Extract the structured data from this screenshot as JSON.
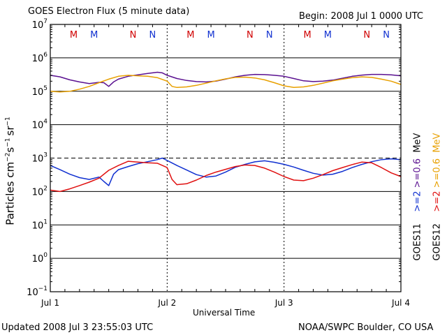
{
  "header": {
    "title": "GOES Electron Flux (5 minute data)",
    "begin": "Begin: 2008 Jul 1 0000 UTC"
  },
  "footer": {
    "updated": "Updated 2008 Jul  3 23:55:03 UTC",
    "source": "NOAA/SWPC Boulder, CO USA"
  },
  "colors": {
    "goes11_ge2": "#1030d0",
    "goes11_ge06": "#5a1090",
    "goes12_ge2": "#e01010",
    "goes12_ge06": "#e8a000",
    "marker_M": "#d00000",
    "marker_N_red": "#d00000",
    "marker_N_blue": "#1030d0",
    "frame": "#000000"
  },
  "chart_data": {
    "type": "line",
    "title": "GOES Electron Flux (5 minute data)",
    "xlabel": "Universal Time",
    "ylabel": "Particles cm⁻² s⁻¹ sr⁻¹",
    "ylabel_parts": {
      "base": "Particles cm",
      "e1": "−2",
      "s": "s",
      "e2": "−1",
      "sr": "sr",
      "e3": "−1"
    },
    "yscale": "log",
    "ylim": [
      0.1,
      10000000
    ],
    "xlim": [
      0,
      72
    ],
    "x_unit": "hours since 2008 Jul 1 0000 UTC",
    "x_ticks": [
      {
        "x": 0,
        "label": "Jul 1"
      },
      {
        "x": 24,
        "label": "Jul 2"
      },
      {
        "x": 48,
        "label": "Jul 3"
      },
      {
        "x": 72,
        "label": "Jul 4"
      }
    ],
    "y_ticks": [
      {
        "base": "10",
        "exp": "7"
      },
      {
        "base": "10",
        "exp": "6"
      },
      {
        "base": "10",
        "exp": "5"
      },
      {
        "base": "10",
        "exp": "4"
      },
      {
        "base": "10",
        "exp": "3"
      },
      {
        "base": "10",
        "exp": "2"
      },
      {
        "base": "10",
        "exp": "1"
      },
      {
        "base": "10",
        "exp": "0"
      },
      {
        "base": "10",
        "exp": "−1"
      }
    ],
    "threshold": {
      "value": 1000,
      "style": "dashed"
    },
    "legend": {
      "goes11": {
        "label": "GOES11",
        "ge2": ">=2",
        "ge06": ">=0.6",
        "unit": "MeV"
      },
      "goes12": {
        "label": "GOES12",
        "ge2": ">=2",
        "ge06": ">=0.6",
        "unit": "MeV"
      }
    },
    "markers": [
      {
        "label": "M",
        "x": 4.8,
        "color": "red"
      },
      {
        "label": "M",
        "x": 9.0,
        "color": "blue"
      },
      {
        "label": "N",
        "x": 17.0,
        "color": "red"
      },
      {
        "label": "N",
        "x": 21.0,
        "color": "blue"
      },
      {
        "label": "M",
        "x": 28.8,
        "color": "red"
      },
      {
        "label": "M",
        "x": 33.0,
        "color": "blue"
      },
      {
        "label": "N",
        "x": 41.0,
        "color": "red"
      },
      {
        "label": "N",
        "x": 45.0,
        "color": "blue"
      },
      {
        "label": "M",
        "x": 52.8,
        "color": "red"
      },
      {
        "label": "M",
        "x": 57.0,
        "color": "blue"
      },
      {
        "label": "N",
        "x": 65.0,
        "color": "red"
      },
      {
        "label": "N",
        "x": 69.0,
        "color": "blue"
      }
    ],
    "series": [
      {
        "name": "GOES11 >=0.6 MeV",
        "color": "#5a1090",
        "x": [
          0,
          2,
          4,
          6,
          8,
          10,
          11,
          12,
          13,
          14,
          16,
          18,
          20,
          22,
          23,
          24,
          26,
          28,
          30,
          32,
          34,
          36,
          38,
          40,
          42,
          44,
          46,
          48,
          50,
          52,
          54,
          56,
          58,
          60,
          62,
          64,
          66,
          68,
          70,
          72
        ],
        "y": [
          300000,
          270000,
          220000,
          190000,
          170000,
          185000,
          180000,
          140000,
          190000,
          230000,
          280000,
          310000,
          340000,
          370000,
          355000,
          300000,
          240000,
          210000,
          195000,
          190000,
          200000,
          230000,
          270000,
          300000,
          320000,
          315000,
          300000,
          280000,
          240000,
          205000,
          195000,
          200000,
          215000,
          245000,
          280000,
          305000,
          320000,
          320000,
          310000,
          290000
        ]
      },
      {
        "name": "GOES12 >=0.6 MeV",
        "color": "#e8a000",
        "x": [
          0,
          2,
          4,
          6,
          8,
          10,
          12,
          14,
          16,
          18,
          20,
          22,
          24,
          25,
          26,
          28,
          30,
          32,
          34,
          36,
          38,
          40,
          42,
          44,
          46,
          48,
          50,
          52,
          54,
          56,
          58,
          60,
          62,
          64,
          66,
          68,
          70,
          72
        ],
        "y": [
          100000,
          95000,
          100000,
          115000,
          140000,
          180000,
          230000,
          280000,
          300000,
          290000,
          280000,
          255000,
          200000,
          140000,
          130000,
          135000,
          150000,
          175000,
          205000,
          235000,
          260000,
          265000,
          250000,
          220000,
          180000,
          145000,
          130000,
          135000,
          150000,
          175000,
          205000,
          230000,
          255000,
          270000,
          260000,
          230000,
          200000,
          160000
        ]
      },
      {
        "name": "GOES11 >=2 MeV",
        "color": "#1030d0",
        "x": [
          0,
          2,
          4,
          6,
          8,
          10,
          11,
          12,
          13,
          14,
          16,
          18,
          20,
          22,
          23,
          24,
          26,
          28,
          30,
          32,
          34,
          36,
          38,
          40,
          42,
          44,
          46,
          48,
          50,
          52,
          54,
          56,
          58,
          60,
          62,
          64,
          66,
          68,
          70,
          72
        ],
        "y": [
          600,
          450,
          330,
          260,
          230,
          270,
          200,
          150,
          330,
          450,
          560,
          680,
          780,
          900,
          1000,
          850,
          600,
          440,
          320,
          270,
          290,
          380,
          530,
          650,
          770,
          830,
          750,
          650,
          540,
          430,
          350,
          310,
          330,
          400,
          520,
          650,
          780,
          900,
          950,
          900
        ]
      },
      {
        "name": "GOES12 >=2 MeV",
        "color": "#e01010",
        "x": [
          0,
          2,
          4,
          6,
          8,
          10,
          12,
          14,
          16,
          18,
          20,
          22,
          24,
          25,
          26,
          28,
          30,
          32,
          34,
          36,
          38,
          40,
          42,
          44,
          46,
          48,
          50,
          52,
          54,
          56,
          58,
          60,
          62,
          64,
          66,
          68,
          70,
          72
        ],
        "y": [
          110,
          100,
          120,
          150,
          190,
          250,
          430,
          600,
          800,
          760,
          720,
          700,
          520,
          230,
          160,
          170,
          220,
          300,
          380,
          460,
          560,
          620,
          600,
          500,
          380,
          280,
          220,
          210,
          250,
          320,
          420,
          520,
          640,
          760,
          720,
          520,
          360,
          280
        ]
      }
    ]
  }
}
